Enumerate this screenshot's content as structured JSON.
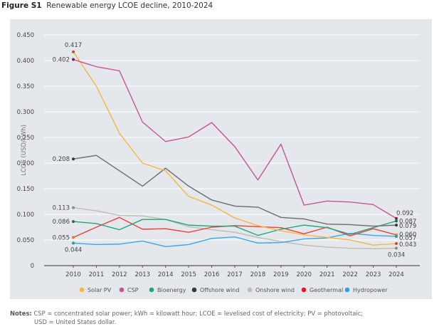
{
  "figure": {
    "label": "Figure S1",
    "title": "Renewable energy LCOE decline, 2010-2024"
  },
  "notes": {
    "label": "Notes:",
    "line1": "CSP = concentrated solar power; kWh = kilowatt hour; LCOE = levelised cost of electricity; PV = photovoltaic;",
    "line2": "USD = United States dollar."
  },
  "chart_data": {
    "type": "line",
    "title": "Renewable energy LCOE decline, 2010-2024",
    "xlabel": "",
    "ylabel": "LCOE (USD/kWh)",
    "ylim": [
      0,
      0.45
    ],
    "yticks": [
      "0",
      "0.050",
      "0.100",
      "0.150",
      "0.200",
      "0.250",
      "0.300",
      "0.350",
      "0.400",
      "0.450"
    ],
    "ytick_values": [
      0,
      0.05,
      0.1,
      0.15,
      0.2,
      0.25,
      0.3,
      0.35,
      0.4,
      0.45
    ],
    "grid": true,
    "legend_position": "bottom",
    "x": [
      2010,
      2011,
      2012,
      2013,
      2014,
      2015,
      2016,
      2017,
      2018,
      2019,
      2020,
      2021,
      2022,
      2023,
      2024
    ],
    "series": [
      {
        "name": "Solar PV",
        "color": "#f9b53f",
        "dot_color": "#c8501a",
        "values": [
          0.417,
          0.35,
          0.258,
          0.2,
          0.185,
          0.135,
          0.118,
          0.093,
          0.078,
          0.068,
          0.06,
          0.055,
          0.05,
          0.04,
          0.043
        ],
        "start_label": "0.417",
        "end_label": "0.043"
      },
      {
        "name": "CSP",
        "color": "#c9548f",
        "dot_color": "#7a1f56",
        "values": [
          0.402,
          0.388,
          0.38,
          0.28,
          0.242,
          0.251,
          0.279,
          0.232,
          0.167,
          0.237,
          0.118,
          0.126,
          0.124,
          0.119,
          0.092
        ],
        "start_label": "0.402",
        "end_label": "0.092"
      },
      {
        "name": "Bioenergy",
        "color": "#22a57a",
        "dot_color": "#1e6f55",
        "values": [
          0.086,
          0.082,
          0.07,
          0.09,
          0.09,
          0.079,
          0.077,
          0.077,
          0.059,
          0.071,
          0.079,
          0.074,
          0.061,
          0.074,
          0.087
        ],
        "start_label": "0.086",
        "end_label": "0.087"
      },
      {
        "name": "Offshore wind",
        "color": "#6b6e70",
        "dot_color": "#333638",
        "values": [
          0.208,
          0.215,
          0.185,
          0.155,
          0.19,
          0.155,
          0.128,
          0.116,
          0.114,
          0.094,
          0.091,
          0.081,
          0.08,
          0.077,
          0.079
        ],
        "start_label": "0.208",
        "end_label": "0.079"
      },
      {
        "name": "Onshore wind",
        "color": "#bfbcb0",
        "dot_color": "#8d8a80",
        "values": [
          0.113,
          0.107,
          0.098,
          0.097,
          0.09,
          0.076,
          0.07,
          0.065,
          0.055,
          0.047,
          0.04,
          0.036,
          0.034,
          0.033,
          0.034
        ],
        "start_label": "0.113",
        "end_label": "0.034"
      },
      {
        "name": "Geothermal",
        "color": "#e8403c",
        "dot_color": "#f07a24",
        "values": [
          0.055,
          0.075,
          0.094,
          0.071,
          0.072,
          0.065,
          0.075,
          0.078,
          0.076,
          0.074,
          0.062,
          0.075,
          0.058,
          0.072,
          0.06
        ],
        "start_label": "0.055",
        "end_label": "0.060"
      },
      {
        "name": "Hydropower",
        "color": "#3aa9e0",
        "dot_color": "#16a39a",
        "values": [
          0.044,
          0.041,
          0.042,
          0.048,
          0.037,
          0.041,
          0.053,
          0.056,
          0.044,
          0.045,
          0.052,
          0.054,
          0.063,
          0.059,
          0.057
        ],
        "start_label": "0.044",
        "end_label": "0.057"
      }
    ],
    "legend_colors": {
      "Solar PV": "#f9b53f",
      "CSP": "#c9548f",
      "Bioenergy": "#22a57a",
      "Offshore wind": "#333a40",
      "Onshore wind": "#bfbcb0",
      "Geothermal": "#e8161c",
      "Hydropower": "#2aa5e2"
    }
  }
}
